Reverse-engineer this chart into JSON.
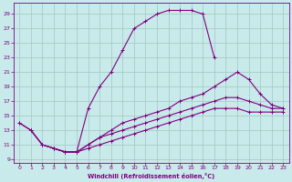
{
  "xlabel": "Windchill (Refroidissement éolien,°C)",
  "background_color": "#c8eaea",
  "grid_color": "#a0c8c0",
  "line_color": "#800080",
  "xlim": [
    -0.5,
    23.5
  ],
  "ylim": [
    8.5,
    30.5
  ],
  "xticks": [
    0,
    1,
    2,
    3,
    4,
    5,
    6,
    7,
    8,
    9,
    10,
    11,
    12,
    13,
    14,
    15,
    16,
    17,
    18,
    19,
    20,
    21,
    22,
    23
  ],
  "yticks": [
    9,
    11,
    13,
    15,
    17,
    19,
    21,
    23,
    25,
    27,
    29
  ],
  "curve1_x": [
    0,
    1,
    2,
    3,
    4,
    5,
    6,
    7,
    8,
    9,
    10,
    11,
    12,
    13,
    14,
    15,
    16,
    17
  ],
  "curve1_y": [
    14,
    13,
    11,
    10.5,
    10,
    10,
    16,
    19,
    21,
    24,
    27,
    28,
    29,
    29.5,
    29.5,
    29.5,
    29,
    23
  ],
  "curve2_x": [
    0,
    1,
    2,
    3,
    4,
    5,
    6,
    7,
    8,
    9,
    10,
    11,
    12,
    13,
    14,
    15,
    16,
    17,
    18,
    19,
    20,
    21,
    22,
    23
  ],
  "curve2_y": [
    14,
    13,
    11,
    10.5,
    10,
    10,
    11,
    12,
    13,
    14,
    14.5,
    15,
    15.5,
    16,
    17,
    17.5,
    18,
    19,
    20,
    21,
    20,
    18,
    16.5,
    16
  ],
  "curve3_x": [
    1,
    2,
    3,
    4,
    5,
    6,
    7,
    8,
    9,
    10,
    11,
    12,
    13,
    14,
    15,
    16,
    17,
    18,
    19,
    20,
    21,
    22,
    23
  ],
  "curve3_y": [
    13,
    11,
    10.5,
    10,
    10,
    11,
    12,
    12.5,
    13,
    13.5,
    14,
    14.5,
    15,
    15.5,
    16,
    16.5,
    17,
    17.5,
    17.5,
    17,
    16.5,
    16,
    16
  ],
  "curve4_x": [
    3,
    4,
    5,
    6,
    7,
    8,
    9,
    10,
    11,
    12,
    13,
    14,
    15,
    16,
    17,
    18,
    19,
    20,
    21,
    22,
    23
  ],
  "curve4_y": [
    10.5,
    10,
    10,
    10.5,
    11,
    11.5,
    12,
    12.5,
    13,
    13.5,
    14,
    14.5,
    15,
    15.5,
    16,
    16,
    16,
    15.5,
    15.5,
    15.5,
    15.5
  ]
}
